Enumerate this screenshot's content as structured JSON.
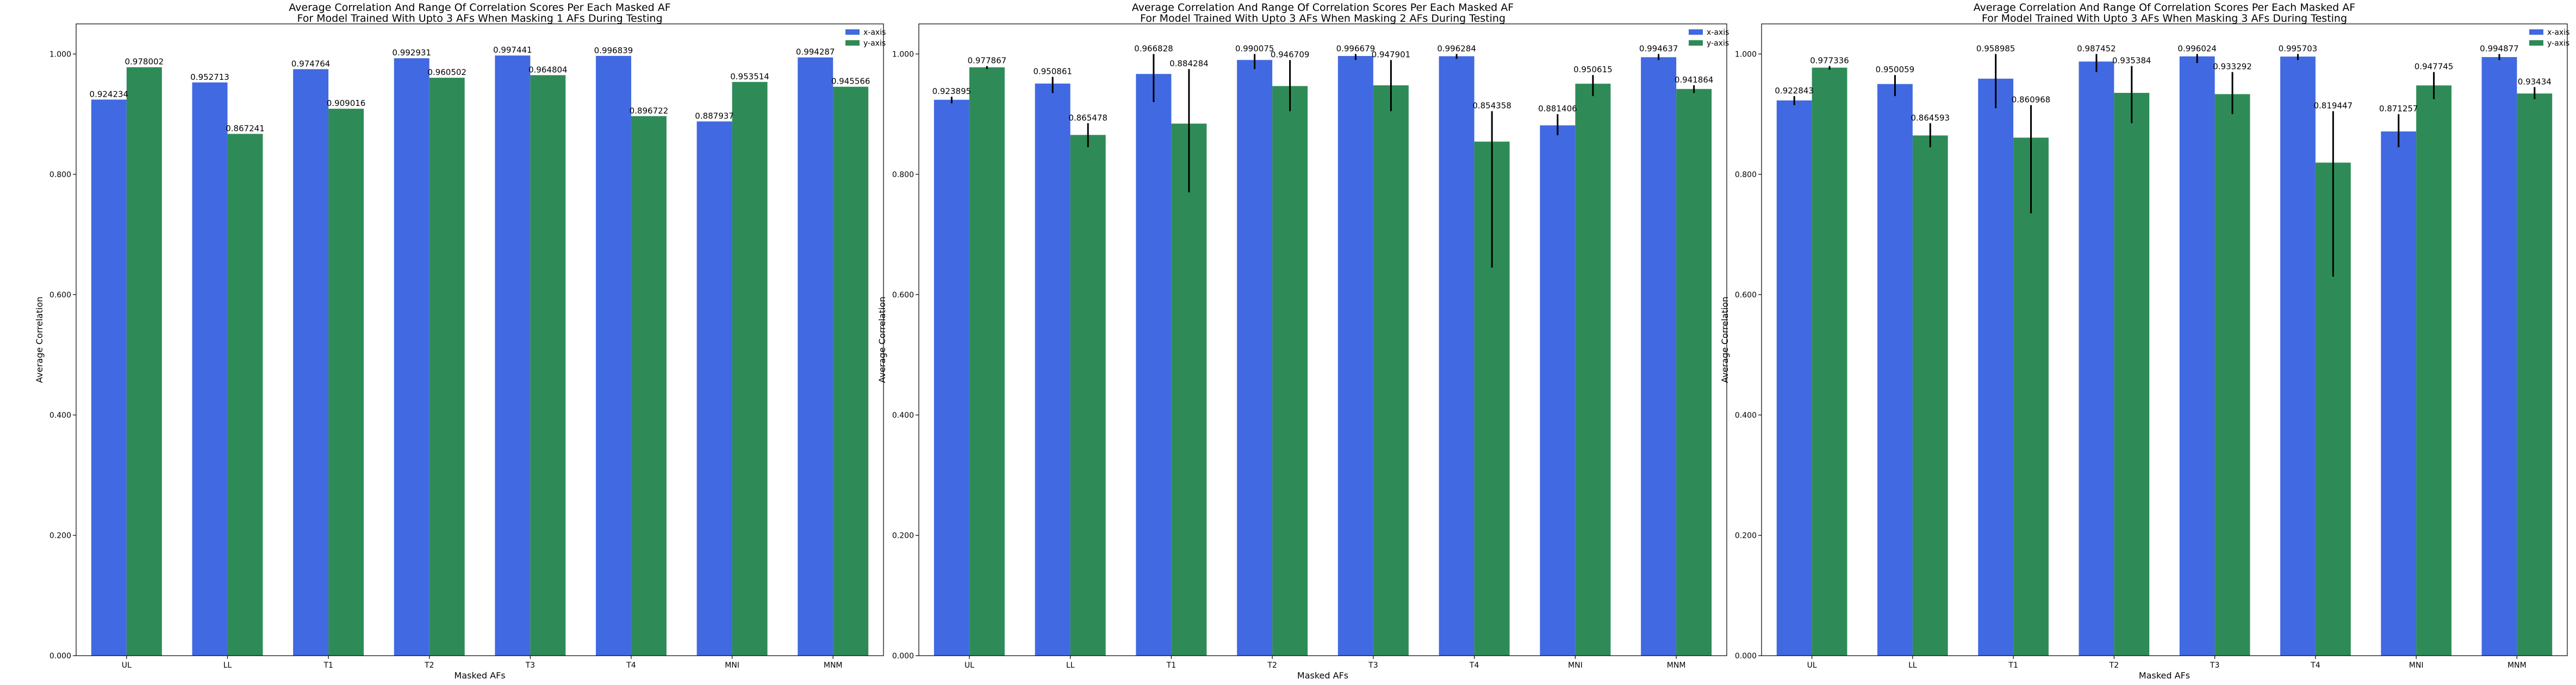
{
  "colors": {
    "x_series": "#4169e1",
    "y_series": "#2e8b57",
    "error_bar": "#000000"
  },
  "chart_data": [
    {
      "type": "bar",
      "title": "Average Correlation And Range Of Correlation Scores Per Each Masked AF",
      "subtitle": "For Model Trained With Upto 3 AFs When Masking 1 AFs During Testing",
      "xlabel": "Masked AFs",
      "ylabel": "Average Correlation",
      "ylim": [
        0,
        1.05
      ],
      "yticks": [
        "0.000",
        "0.200",
        "0.400",
        "0.600",
        "0.800",
        "1.000"
      ],
      "grid": false,
      "legend": "top-right",
      "categories": [
        "UL",
        "LL",
        "T1",
        "T2",
        "T3",
        "T4",
        "MNI",
        "MNM"
      ],
      "series": [
        {
          "name": "x-axis",
          "values": [
            0.924234,
            0.952713,
            0.974764,
            0.992931,
            0.997441,
            0.996839,
            0.887937,
            0.994287
          ],
          "labels": [
            "0.924234",
            "0.952713",
            "0.974764",
            "0.992931",
            "0.997441",
            "0.996839",
            "0.887937",
            "0.994287"
          ],
          "err": [
            null,
            null,
            null,
            null,
            null,
            null,
            null,
            null
          ]
        },
        {
          "name": "y-axis",
          "values": [
            0.978002,
            0.867241,
            0.909016,
            0.960502,
            0.964804,
            0.896722,
            0.953514,
            0.945566
          ],
          "labels": [
            "0.978002",
            "0.867241",
            "0.909016",
            "0.960502",
            "0.964804",
            "0.896722",
            "0.953514",
            "0.945566"
          ],
          "err": [
            null,
            null,
            null,
            null,
            null,
            null,
            null,
            null
          ]
        }
      ]
    },
    {
      "type": "bar",
      "title": "Average Correlation And Range Of Correlation Scores Per Each Masked AF",
      "subtitle": "For Model Trained With Upto 3 AFs When Masking 2 AFs During Testing",
      "xlabel": "Masked AFs",
      "ylabel": "Average Correlation",
      "ylim": [
        0,
        1.05
      ],
      "yticks": [
        "0.000",
        "0.200",
        "0.400",
        "0.600",
        "0.800",
        "1.000"
      ],
      "grid": false,
      "legend": "top-right",
      "categories": [
        "UL",
        "LL",
        "T1",
        "T2",
        "T3",
        "T4",
        "MNI",
        "MNM"
      ],
      "series": [
        {
          "name": "x-axis",
          "values": [
            0.923895,
            0.950861,
            0.966828,
            0.990075,
            0.996679,
            0.996284,
            0.881406,
            0.994637
          ],
          "labels": [
            "0.923895",
            "0.950861",
            "0.966828",
            "0.990075",
            "0.996679",
            "0.996284",
            "0.881406",
            "0.994637"
          ],
          "err": [
            [
              0.918,
              0.929
            ],
            [
              0.935,
              0.962
            ],
            [
              0.92,
              1.0
            ],
            [
              0.975,
              1.0
            ],
            [
              0.99,
              1.0
            ],
            [
              0.992,
              1.0
            ],
            [
              0.865,
              0.9
            ],
            [
              0.99,
              1.0
            ]
          ]
        },
        {
          "name": "y-axis",
          "values": [
            0.977867,
            0.865478,
            0.884284,
            0.946709,
            0.947901,
            0.854358,
            0.950615,
            0.941864
          ],
          "labels": [
            "0.977867",
            "0.865478",
            "0.884284",
            "0.946709",
            "0.947901",
            "0.854358",
            "0.950615",
            "0.941864"
          ],
          "err": [
            [
              0.975,
              0.98
            ],
            [
              0.845,
              0.885
            ],
            [
              0.77,
              0.975
            ],
            [
              0.905,
              0.99
            ],
            [
              0.905,
              0.99
            ],
            [
              0.645,
              0.905
            ],
            [
              0.93,
              0.965
            ],
            [
              0.935,
              0.948
            ]
          ]
        }
      ]
    },
    {
      "type": "bar",
      "title": "Average Correlation And Range Of Correlation Scores Per Each Masked AF",
      "subtitle": "For Model Trained With Upto 3 AFs When Masking 3 AFs During Testing",
      "xlabel": "Masked AFs",
      "ylabel": "Average Correlation",
      "ylim": [
        0,
        1.05
      ],
      "yticks": [
        "0.000",
        "0.200",
        "0.400",
        "0.600",
        "0.800",
        "1.000"
      ],
      "grid": false,
      "legend": "top-right",
      "categories": [
        "UL",
        "LL",
        "T1",
        "T2",
        "T3",
        "T4",
        "MNI",
        "MNM"
      ],
      "series": [
        {
          "name": "x-axis",
          "values": [
            0.922843,
            0.950059,
            0.958985,
            0.987452,
            0.996024,
            0.995703,
            0.871257,
            0.994877
          ],
          "labels": [
            "0.922843",
            "0.950059",
            "0.958985",
            "0.987452",
            "0.996024",
            "0.995703",
            "0.871257",
            "0.994877"
          ],
          "err": [
            [
              0.915,
              0.93
            ],
            [
              0.93,
              0.965
            ],
            [
              0.91,
              1.0
            ],
            [
              0.97,
              1.0
            ],
            [
              0.985,
              1.0
            ],
            [
              0.99,
              1.0
            ],
            [
              0.845,
              0.9
            ],
            [
              0.99,
              1.0
            ]
          ]
        },
        {
          "name": "y-axis",
          "values": [
            0.977336,
            0.864593,
            0.860968,
            0.935384,
            0.933292,
            0.819447,
            0.947745,
            0.93434
          ],
          "labels": [
            "0.977336",
            "0.864593",
            "0.860968",
            "0.935384",
            "0.933292",
            "0.819447",
            "0.947745",
            "0.93434"
          ],
          "err": [
            [
              0.974,
              0.98
            ],
            [
              0.845,
              0.885
            ],
            [
              0.735,
              0.915
            ],
            [
              0.885,
              0.98
            ],
            [
              0.9,
              0.97
            ],
            [
              0.63,
              0.905
            ],
            [
              0.925,
              0.97
            ],
            [
              0.925,
              0.945
            ]
          ]
        }
      ]
    }
  ]
}
